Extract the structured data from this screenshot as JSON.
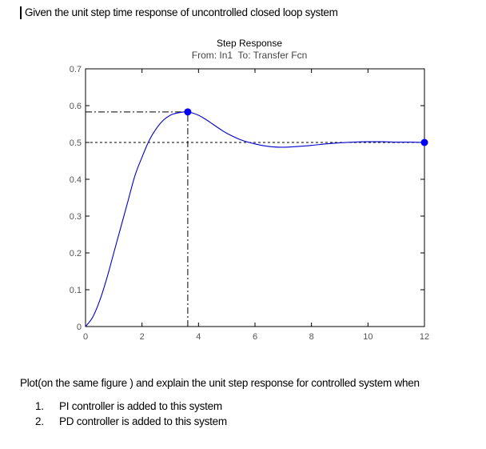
{
  "header": {
    "text": "Given the unit step time response of uncontrolled closed loop system"
  },
  "chart_data": {
    "type": "line",
    "title": "Step Response",
    "subtitle": "From: In1  To: Transfer Fcn",
    "xlim": [
      0,
      12
    ],
    "ylim": [
      0,
      0.7
    ],
    "xticks": [
      "0",
      "2",
      "4",
      "6",
      "8",
      "10",
      "12"
    ],
    "yticks": [
      "0",
      "0.1",
      "0.2",
      "0.3",
      "0.4",
      "0.5",
      "0.6",
      "0.7"
    ],
    "xtick_values": [
      0,
      2,
      4,
      6,
      8,
      10,
      12
    ],
    "ytick_values": [
      0,
      0.1,
      0.2,
      0.3,
      0.4,
      0.5,
      0.6,
      0.7
    ],
    "grid": false,
    "series": [
      {
        "color": "#0000cc",
        "x": [
          0,
          0.25,
          0.5,
          0.75,
          1.0,
          1.25,
          1.5,
          1.75,
          2.0,
          2.25,
          2.5,
          2.75,
          3.0,
          3.25,
          3.5,
          3.62,
          3.75,
          4.0,
          4.25,
          4.5,
          4.75,
          5.0,
          5.5,
          6.0,
          6.5,
          7.0,
          7.5,
          8.0,
          8.5,
          9.0,
          9.5,
          10.0,
          10.5,
          11.0,
          11.5,
          12.0
        ],
        "y": [
          0,
          0.025,
          0.07,
          0.13,
          0.2,
          0.27,
          0.34,
          0.41,
          0.46,
          0.505,
          0.537,
          0.56,
          0.574,
          0.58,
          0.583,
          0.583,
          0.581,
          0.574,
          0.563,
          0.55,
          0.537,
          0.525,
          0.507,
          0.496,
          0.489,
          0.487,
          0.489,
          0.492,
          0.496,
          0.499,
          0.501,
          0.502,
          0.502,
          0.501,
          0.501,
          0.5
        ]
      }
    ],
    "markers": [
      {
        "label": "peak",
        "x": 3.62,
        "y": 0.583,
        "color": "#0000ff"
      },
      {
        "label": "final",
        "x": 12,
        "y": 0.5,
        "color": "#0000ff"
      }
    ],
    "reference_lines": [
      {
        "kind": "horizontal",
        "y": 0.5,
        "style": "dotted"
      },
      {
        "kind": "horizontal",
        "y": 0.583,
        "style": "dashdot",
        "x_to": 3.62
      },
      {
        "kind": "vertical",
        "x": 3.62,
        "style": "dashdot",
        "y_to": 0.583
      }
    ]
  },
  "prompt": {
    "text": "Plot(on the same figure ) and explain the unit step response for controlled system when"
  },
  "options": [
    {
      "num": "1.",
      "text": "PI controller is added to this system"
    },
    {
      "num": "2.",
      "text": "PD controller is added to this system"
    }
  ]
}
